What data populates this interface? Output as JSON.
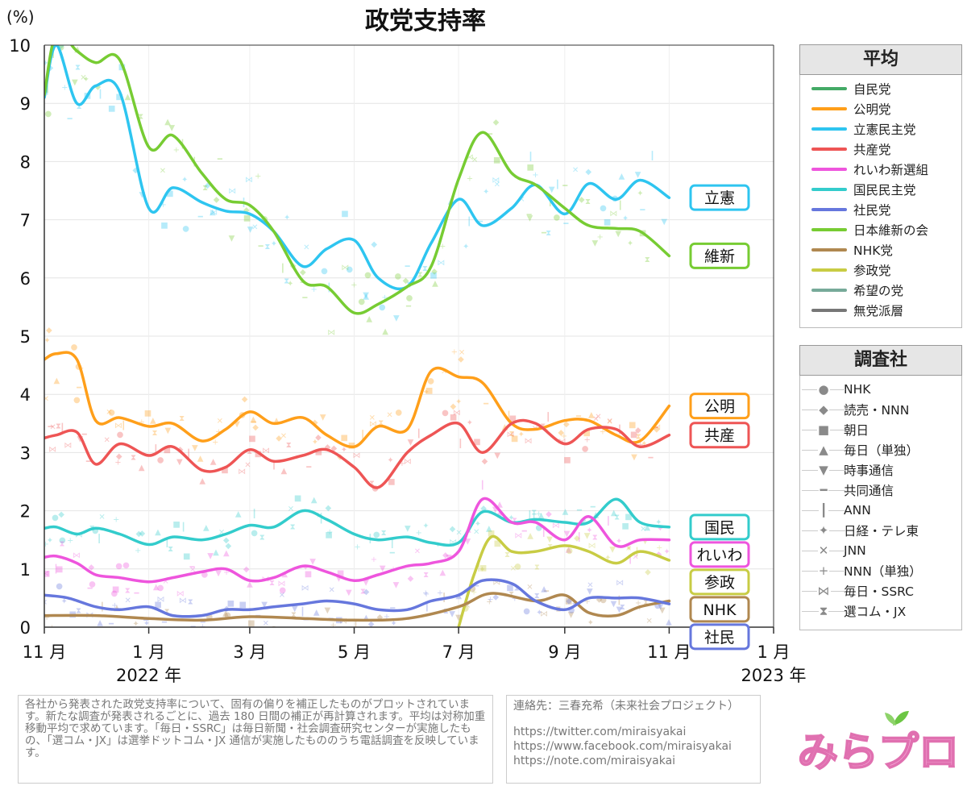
{
  "chart_data": {
    "type": "line",
    "title": "政党支持率",
    "ylabel": "(%)",
    "ylim": [
      0,
      10
    ],
    "yticks": [
      "0",
      "1",
      "2",
      "3",
      "4",
      "5",
      "6",
      "7",
      "8",
      "9",
      "10"
    ],
    "xticks": [
      {
        "label": "11 月",
        "date": "2021-11-01"
      },
      {
        "label": "1 月",
        "date": "2022-01-01"
      },
      {
        "label": "3 月",
        "date": "2022-03-01"
      },
      {
        "label": "5 月",
        "date": "2022-05-01"
      },
      {
        "label": "7 月",
        "date": "2022-07-01"
      },
      {
        "label": "9 月",
        "date": "2022-09-01"
      },
      {
        "label": "11 月",
        "date": "2022-11-01"
      },
      {
        "label": "1 月",
        "date": "2023-01-01"
      }
    ],
    "year_labels": [
      {
        "label": "2022 年",
        "date": "2022-01-01"
      },
      {
        "label": "2023 年",
        "date": "2023-01-01"
      }
    ],
    "series": [
      {
        "name": "立憲",
        "legend": "立憲民主党",
        "color": "#2ec5f0",
        "x": [
          "2021-11-01",
          "2021-11-08",
          "2021-11-20",
          "2021-12-01",
          "2021-12-15",
          "2022-01-01",
          "2022-01-15",
          "2022-02-01",
          "2022-02-15",
          "2022-03-01",
          "2022-03-15",
          "2022-04-01",
          "2022-04-15",
          "2022-05-01",
          "2022-05-15",
          "2022-06-01",
          "2022-06-15",
          "2022-07-01",
          "2022-07-15",
          "2022-08-01",
          "2022-08-15",
          "2022-09-01",
          "2022-09-15",
          "2022-10-01",
          "2022-10-15",
          "2022-11-01"
        ],
        "y": [
          9.1,
          10.0,
          9.0,
          9.3,
          9.2,
          7.2,
          7.55,
          7.3,
          7.15,
          7.1,
          6.8,
          6.2,
          6.5,
          6.65,
          6.0,
          5.85,
          6.6,
          7.35,
          6.9,
          7.2,
          7.6,
          7.1,
          7.62,
          7.35,
          7.68,
          7.38
        ]
      },
      {
        "name": "維新",
        "legend": "日本維新の会",
        "color": "#77cc33",
        "x": [
          "2021-11-01",
          "2021-11-08",
          "2021-11-20",
          "2021-12-01",
          "2021-12-15",
          "2022-01-01",
          "2022-01-15",
          "2022-02-01",
          "2022-02-15",
          "2022-03-01",
          "2022-03-15",
          "2022-04-01",
          "2022-04-15",
          "2022-05-01",
          "2022-05-15",
          "2022-06-01",
          "2022-06-15",
          "2022-07-01",
          "2022-07-15",
          "2022-08-01",
          "2022-08-15",
          "2022-09-01",
          "2022-09-15",
          "2022-10-01",
          "2022-10-15",
          "2022-11-01"
        ],
        "y": [
          9.15,
          10.2,
          9.9,
          9.7,
          9.75,
          8.25,
          8.45,
          7.8,
          7.35,
          7.25,
          6.8,
          5.95,
          5.85,
          5.4,
          5.55,
          5.85,
          6.2,
          7.7,
          8.5,
          7.8,
          7.6,
          7.2,
          6.9,
          6.85,
          6.8,
          6.38
        ]
      },
      {
        "name": "公明",
        "legend": "公明党",
        "color": "#ff9f1a",
        "x": [
          "2021-11-01",
          "2021-11-08",
          "2021-11-20",
          "2021-12-01",
          "2021-12-15",
          "2022-01-01",
          "2022-01-15",
          "2022-02-01",
          "2022-02-15",
          "2022-03-01",
          "2022-03-15",
          "2022-04-01",
          "2022-04-15",
          "2022-05-01",
          "2022-05-15",
          "2022-06-01",
          "2022-06-15",
          "2022-07-01",
          "2022-07-15",
          "2022-08-01",
          "2022-08-15",
          "2022-09-01",
          "2022-09-15",
          "2022-10-01",
          "2022-10-15",
          "2022-11-01"
        ],
        "y": [
          4.6,
          4.7,
          4.6,
          3.55,
          3.6,
          3.45,
          3.5,
          3.2,
          3.4,
          3.7,
          3.5,
          3.6,
          3.3,
          3.1,
          3.45,
          3.4,
          4.4,
          4.3,
          4.2,
          3.5,
          3.4,
          3.55,
          3.55,
          3.3,
          3.2,
          3.8
        ]
      },
      {
        "name": "共産",
        "legend": "共産党",
        "color": "#ee5555",
        "x": [
          "2021-11-01",
          "2021-11-08",
          "2021-11-20",
          "2021-12-01",
          "2021-12-15",
          "2022-01-01",
          "2022-01-15",
          "2022-02-01",
          "2022-02-15",
          "2022-03-01",
          "2022-03-15",
          "2022-04-01",
          "2022-04-15",
          "2022-05-01",
          "2022-05-15",
          "2022-06-01",
          "2022-06-15",
          "2022-07-01",
          "2022-07-15",
          "2022-08-01",
          "2022-08-15",
          "2022-09-01",
          "2022-09-15",
          "2022-10-01",
          "2022-10-15",
          "2022-11-01"
        ],
        "y": [
          3.25,
          3.3,
          3.35,
          2.8,
          3.15,
          2.95,
          3.1,
          2.7,
          2.75,
          3.05,
          2.85,
          2.95,
          3.05,
          2.75,
          2.4,
          3.0,
          3.3,
          3.5,
          3.0,
          3.5,
          3.5,
          3.15,
          3.4,
          3.4,
          3.1,
          3.3
        ]
      },
      {
        "name": "国民",
        "legend": "国民民主党",
        "color": "#33cccc",
        "x": [
          "2021-11-01",
          "2021-11-08",
          "2021-11-20",
          "2021-12-01",
          "2021-12-15",
          "2022-01-01",
          "2022-01-15",
          "2022-02-01",
          "2022-02-15",
          "2022-03-01",
          "2022-03-15",
          "2022-04-01",
          "2022-04-15",
          "2022-05-01",
          "2022-05-15",
          "2022-06-01",
          "2022-06-15",
          "2022-07-01",
          "2022-07-15",
          "2022-08-01",
          "2022-08-15",
          "2022-09-01",
          "2022-09-15",
          "2022-10-01",
          "2022-10-15",
          "2022-11-01"
        ],
        "y": [
          1.7,
          1.72,
          1.6,
          1.7,
          1.6,
          1.42,
          1.55,
          1.5,
          1.6,
          1.75,
          1.72,
          2.0,
          1.85,
          1.6,
          1.5,
          1.55,
          1.45,
          1.45,
          1.98,
          1.8,
          1.85,
          1.8,
          1.8,
          2.2,
          1.8,
          1.72
        ]
      },
      {
        "name": "れいわ",
        "legend": "れいわ新選組",
        "color": "#ee55dd",
        "x": [
          "2021-11-01",
          "2021-11-08",
          "2021-11-20",
          "2021-12-01",
          "2021-12-15",
          "2022-01-01",
          "2022-01-15",
          "2022-02-01",
          "2022-02-15",
          "2022-03-01",
          "2022-03-15",
          "2022-04-01",
          "2022-04-15",
          "2022-05-01",
          "2022-05-15",
          "2022-06-01",
          "2022-06-15",
          "2022-07-01",
          "2022-07-15",
          "2022-08-01",
          "2022-08-15",
          "2022-09-01",
          "2022-09-15",
          "2022-10-01",
          "2022-10-15",
          "2022-11-01"
        ],
        "y": [
          1.2,
          1.22,
          1.1,
          0.9,
          0.85,
          0.78,
          0.85,
          0.95,
          1.0,
          0.8,
          0.85,
          1.05,
          0.95,
          0.8,
          0.9,
          1.05,
          1.1,
          1.3,
          2.2,
          1.8,
          1.8,
          1.5,
          1.9,
          1.4,
          1.5,
          1.5
        ]
      },
      {
        "name": "参政",
        "legend": "参政党",
        "color": "#c8cc44",
        "x": [
          "2022-07-01",
          "2022-07-10",
          "2022-07-20",
          "2022-08-01",
          "2022-08-15",
          "2022-09-01",
          "2022-09-15",
          "2022-10-01",
          "2022-10-15",
          "2022-11-01"
        ],
        "y": [
          0.0,
          0.9,
          1.55,
          1.3,
          1.3,
          1.4,
          1.3,
          1.1,
          1.3,
          1.15
        ]
      },
      {
        "name": "NHK",
        "legend": "NHK党",
        "color": "#b08850",
        "x": [
          "2021-11-01",
          "2021-12-01",
          "2022-01-01",
          "2022-02-01",
          "2022-03-01",
          "2022-04-01",
          "2022-05-01",
          "2022-06-01",
          "2022-07-01",
          "2022-07-20",
          "2022-08-15",
          "2022-09-01",
          "2022-09-15",
          "2022-10-01",
          "2022-10-15",
          "2022-11-01"
        ],
        "y": [
          0.2,
          0.2,
          0.15,
          0.12,
          0.18,
          0.15,
          0.12,
          0.15,
          0.35,
          0.58,
          0.45,
          0.55,
          0.25,
          0.2,
          0.35,
          0.45
        ]
      },
      {
        "name": "社民",
        "legend": "社民党",
        "color": "#6677dd",
        "x": [
          "2021-11-01",
          "2021-11-15",
          "2021-12-01",
          "2021-12-15",
          "2022-01-01",
          "2022-01-15",
          "2022-02-01",
          "2022-02-15",
          "2022-03-01",
          "2022-03-15",
          "2022-04-01",
          "2022-04-15",
          "2022-05-01",
          "2022-05-15",
          "2022-06-01",
          "2022-06-15",
          "2022-07-01",
          "2022-07-15",
          "2022-08-01",
          "2022-08-15",
          "2022-09-01",
          "2022-09-15",
          "2022-10-01",
          "2022-10-15",
          "2022-11-01"
        ],
        "y": [
          0.55,
          0.5,
          0.35,
          0.3,
          0.35,
          0.2,
          0.2,
          0.3,
          0.3,
          0.35,
          0.4,
          0.45,
          0.4,
          0.3,
          0.3,
          0.45,
          0.55,
          0.8,
          0.75,
          0.45,
          0.3,
          0.5,
          0.5,
          0.5,
          0.4
        ]
      }
    ]
  },
  "legend_parties": {
    "title": "平均",
    "items": [
      {
        "label": "自民党",
        "color": "#44aa66"
      },
      {
        "label": "公明党",
        "color": "#ff9f1a"
      },
      {
        "label": "立憲民主党",
        "color": "#2ec5f0"
      },
      {
        "label": "共産党",
        "color": "#ee5555"
      },
      {
        "label": "れいわ新選組",
        "color": "#ee55dd"
      },
      {
        "label": "国民民主党",
        "color": "#33cccc"
      },
      {
        "label": "社民党",
        "color": "#6677dd"
      },
      {
        "label": "日本維新の会",
        "color": "#77cc33"
      },
      {
        "label": "NHK党",
        "color": "#b08850"
      },
      {
        "label": "参政党",
        "color": "#c8cc44"
      },
      {
        "label": "希望の党",
        "color": "#77aa99"
      },
      {
        "label": "無党派層",
        "color": "#777777"
      }
    ]
  },
  "legend_pollsters": {
    "title": "調査社",
    "items": [
      {
        "label": "NHK",
        "marker": "●"
      },
      {
        "label": "読売・NNN",
        "marker": "◆"
      },
      {
        "label": "朝日",
        "marker": "■"
      },
      {
        "label": "毎日（単独）",
        "marker": "▲"
      },
      {
        "label": "時事通信",
        "marker": "▼"
      },
      {
        "label": "共同通信",
        "marker": "━"
      },
      {
        "label": "ANN",
        "marker": "┃"
      },
      {
        "label": "日経・テレ東",
        "marker": "✦"
      },
      {
        "label": "JNN",
        "marker": "✕"
      },
      {
        "label": "NNN（単独）",
        "marker": "+"
      },
      {
        "label": "毎日・SSRC",
        "marker": "⋈"
      },
      {
        "label": "選コム・JX",
        "marker": "⧗"
      }
    ]
  },
  "footnote": "各社から発表された政党支持率について、固有の偏りを補正したものがプロットされています。新たな調査が発表されるごとに、過去 180 日間の補正が再計算されます。平均は対称加重移動平均で求めています。「毎日・SSRC」は毎日新聞・社会調査研究センターが実施したもの、「選コム・JX」は選挙ドットコム・JX 通信が実施したもののうち電話調査を反映しています。",
  "contact": {
    "label": "連絡先：三春充希（未来社会プロジェクト）",
    "links": [
      "https://twitter.com/miraisyakai",
      "https://www.facebook.com/miraisyakai",
      "https://note.com/miraisyakai"
    ]
  },
  "logo_text": "みらプロ"
}
